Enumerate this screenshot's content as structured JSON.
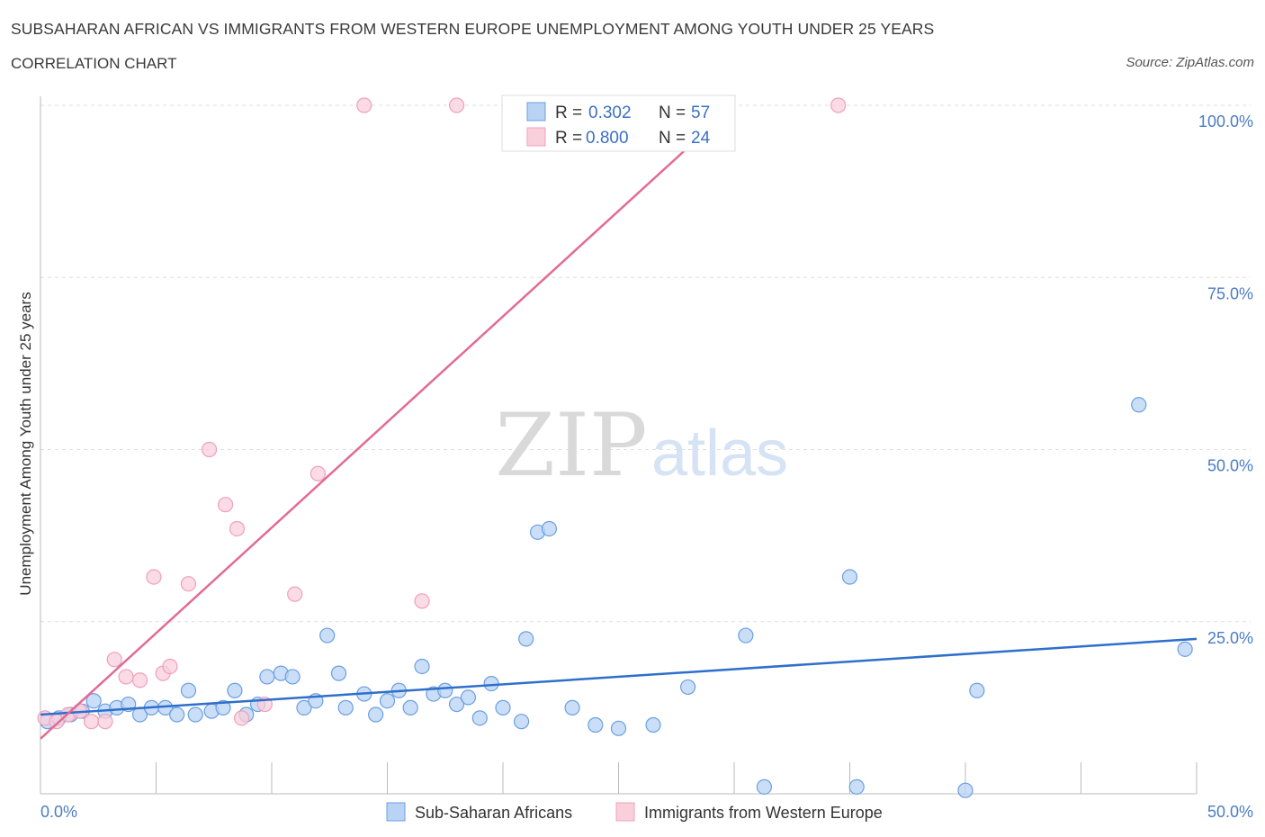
{
  "chart_data": {
    "type": "scatter",
    "title": "SUBSAHARAN AFRICAN VS IMMIGRANTS FROM WESTERN EUROPE UNEMPLOYMENT AMONG YOUTH UNDER 25 YEARS",
    "subtitle": "CORRELATION CHART",
    "source": "Source: ZipAtlas.com",
    "ylabel": "Unemployment Among Youth under 25 years",
    "xlim": [
      0,
      50
    ],
    "ylim": [
      0,
      100
    ],
    "x_ticks": [
      {
        "value": 0,
        "label": "0.0%"
      },
      {
        "value": 50,
        "label": "50.0%"
      }
    ],
    "y_ticks": [
      {
        "value": 25,
        "label": "25.0%"
      },
      {
        "value": 50,
        "label": "50.0%"
      },
      {
        "value": 75,
        "label": "75.0%"
      },
      {
        "value": 100,
        "label": "100.0%"
      }
    ],
    "watermark": {
      "zip": "ZIP",
      "atlas": "atlas"
    },
    "legend": {
      "r_label": "R = ",
      "n_label": "N = ",
      "entries": [
        {
          "r": "0.302",
          "n": "57"
        },
        {
          "r": "0.800",
          "n": "24"
        }
      ]
    },
    "series": [
      {
        "name": "Sub-Saharan Africans",
        "color": "#6a9fe0",
        "fill": "#b9d3f5",
        "line_color": "#2e6fcc",
        "trend": {
          "x0": 0,
          "y0": 11.5,
          "x1": 50,
          "y1": 22.5
        },
        "points": [
          [
            0.3,
            10.5
          ],
          [
            0.8,
            11.0
          ],
          [
            1.3,
            11.5
          ],
          [
            1.8,
            12.0
          ],
          [
            2.3,
            13.5
          ],
          [
            2.8,
            12.0
          ],
          [
            3.3,
            12.5
          ],
          [
            3.8,
            13.0
          ],
          [
            4.3,
            11.5
          ],
          [
            4.8,
            12.5
          ],
          [
            5.4,
            12.5
          ],
          [
            5.9,
            11.5
          ],
          [
            6.4,
            15.0
          ],
          [
            6.7,
            11.5
          ],
          [
            7.4,
            12.0
          ],
          [
            7.9,
            12.5
          ],
          [
            8.4,
            15.0
          ],
          [
            8.9,
            11.5
          ],
          [
            9.4,
            13.0
          ],
          [
            9.8,
            17.0
          ],
          [
            10.4,
            17.5
          ],
          [
            10.9,
            17.0
          ],
          [
            11.4,
            12.5
          ],
          [
            11.9,
            13.5
          ],
          [
            12.4,
            23.0
          ],
          [
            12.9,
            17.5
          ],
          [
            13.2,
            12.5
          ],
          [
            14.0,
            14.5
          ],
          [
            14.5,
            11.5
          ],
          [
            15.0,
            13.5
          ],
          [
            15.5,
            15.0
          ],
          [
            16.0,
            12.5
          ],
          [
            16.5,
            18.5
          ],
          [
            17.0,
            14.5
          ],
          [
            17.5,
            15.0
          ],
          [
            18.0,
            13.0
          ],
          [
            18.5,
            14.0
          ],
          [
            19.0,
            11.0
          ],
          [
            19.5,
            16.0
          ],
          [
            20.0,
            12.5
          ],
          [
            20.8,
            10.5
          ],
          [
            21.0,
            22.5
          ],
          [
            21.5,
            38.0
          ],
          [
            22.0,
            38.5
          ],
          [
            23.0,
            12.5
          ],
          [
            24.0,
            10.0
          ],
          [
            25.0,
            9.5
          ],
          [
            26.5,
            10.0
          ],
          [
            28.0,
            15.5
          ],
          [
            30.5,
            23.0
          ],
          [
            31.3,
            1.0
          ],
          [
            35.0,
            31.5
          ],
          [
            35.3,
            1.0
          ],
          [
            40.0,
            0.5
          ],
          [
            40.5,
            15.0
          ],
          [
            47.5,
            56.5
          ],
          [
            49.5,
            21.0
          ]
        ]
      },
      {
        "name": "Immigrants from Western Europe",
        "color": "#f0a0b8",
        "fill": "#f9cfdc",
        "line_color": "#e26b93",
        "trend": {
          "x0": 0,
          "y0": 8.0,
          "x1": 30,
          "y1": 100.0
        },
        "points": [
          [
            0.2,
            11.0
          ],
          [
            0.7,
            10.5
          ],
          [
            1.2,
            11.5
          ],
          [
            1.7,
            12.0
          ],
          [
            2.2,
            10.5
          ],
          [
            2.8,
            10.5
          ],
          [
            3.2,
            19.5
          ],
          [
            3.7,
            17.0
          ],
          [
            4.3,
            16.5
          ],
          [
            4.9,
            31.5
          ],
          [
            5.3,
            17.5
          ],
          [
            5.6,
            18.5
          ],
          [
            6.4,
            30.5
          ],
          [
            7.3,
            50.0
          ],
          [
            8.0,
            42.0
          ],
          [
            8.5,
            38.5
          ],
          [
            8.7,
            11.0
          ],
          [
            9.7,
            13.0
          ],
          [
            11.0,
            29.0
          ],
          [
            12.0,
            46.5
          ],
          [
            14.0,
            100.0
          ],
          [
            16.5,
            28.0
          ],
          [
            18.0,
            100.0
          ],
          [
            34.5,
            100.0
          ]
        ]
      }
    ]
  }
}
